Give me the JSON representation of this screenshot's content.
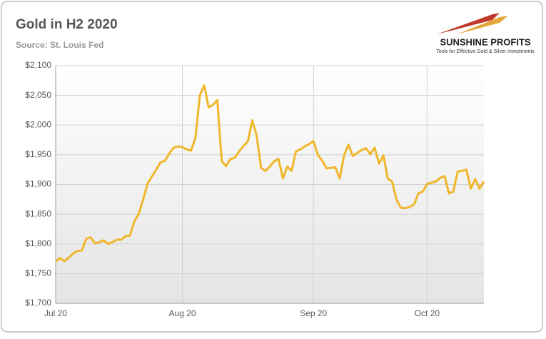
{
  "chart_data": {
    "type": "line",
    "title": "Gold in H2 2020",
    "subtitle": "Source: St. Louis Fed",
    "annotations": [
      "SUNSHINE PROFITS",
      "Tools for Effective Gold & Silver Investments"
    ],
    "categories": [
      "Jul 20",
      null,
      null,
      null,
      null,
      null,
      null,
      null,
      null,
      null,
      null,
      null,
      null,
      null,
      null,
      null,
      null,
      null,
      null,
      null,
      null,
      null,
      null,
      null,
      null,
      null,
      null,
      null,
      null,
      "Aug 20",
      null,
      null,
      null,
      null,
      null,
      null,
      null,
      null,
      null,
      null,
      null,
      null,
      null,
      null,
      null,
      null,
      null,
      null,
      null,
      null,
      null,
      null,
      null,
      null,
      null,
      null,
      null,
      null,
      null,
      "Sep 20",
      null,
      null,
      null,
      null,
      null,
      null,
      null,
      null,
      null,
      null,
      null,
      null,
      null,
      null,
      null,
      null,
      null,
      null,
      null,
      null,
      null,
      null,
      null,
      null,
      null,
      "Oct 20",
      null,
      null,
      null,
      null,
      null,
      null,
      null,
      null,
      null,
      null,
      null,
      null,
      null
    ],
    "values": [
      1770,
      1776,
      1771,
      1777,
      1784,
      1788,
      1789,
      1809,
      1811,
      1801,
      1803,
      1806,
      1800,
      1803,
      1807,
      1807,
      1813,
      1814,
      1838,
      1850,
      1874,
      1901,
      1913,
      1925,
      1937,
      1940,
      1952,
      1962,
      1964,
      1963,
      1959,
      1957,
      1979,
      2050,
      2067,
      2030,
      2034,
      2042,
      1939,
      1931,
      1943,
      1945,
      1956,
      1965,
      1973,
      2008,
      1982,
      1928,
      1923,
      1930,
      1939,
      1943,
      1910,
      1930,
      1923,
      1956,
      1959,
      1964,
      1968,
      1973,
      1950,
      1940,
      1927,
      1928,
      1929,
      1910,
      1949,
      1967,
      1948,
      1953,
      1958,
      1961,
      1951,
      1962,
      1935,
      1949,
      1910,
      1905,
      1874,
      1861,
      1860,
      1862,
      1866,
      1885,
      1888,
      1901,
      1903,
      1905,
      1911,
      1914,
      1885,
      1888,
      1922,
      1923,
      1925,
      1893,
      1909,
      1893,
      1905
    ],
    "color": "#f0b72c",
    "ylim": [
      1700,
      2100
    ],
    "yticks": [
      {
        "value": 1700,
        "label": "$1,700"
      },
      {
        "value": 1750,
        "label": "$1,750"
      },
      {
        "value": 1800,
        "label": "$1,800"
      },
      {
        "value": 1850,
        "label": "$1,850"
      },
      {
        "value": 1900,
        "label": "$1,900"
      },
      {
        "value": 1950,
        "label": "$1,950"
      },
      {
        "value": 2000,
        "label": "$2,000"
      },
      {
        "value": 2050,
        "label": "$2,050"
      },
      {
        "value": 2100,
        "label": "$2,100"
      }
    ],
    "grid": true
  }
}
